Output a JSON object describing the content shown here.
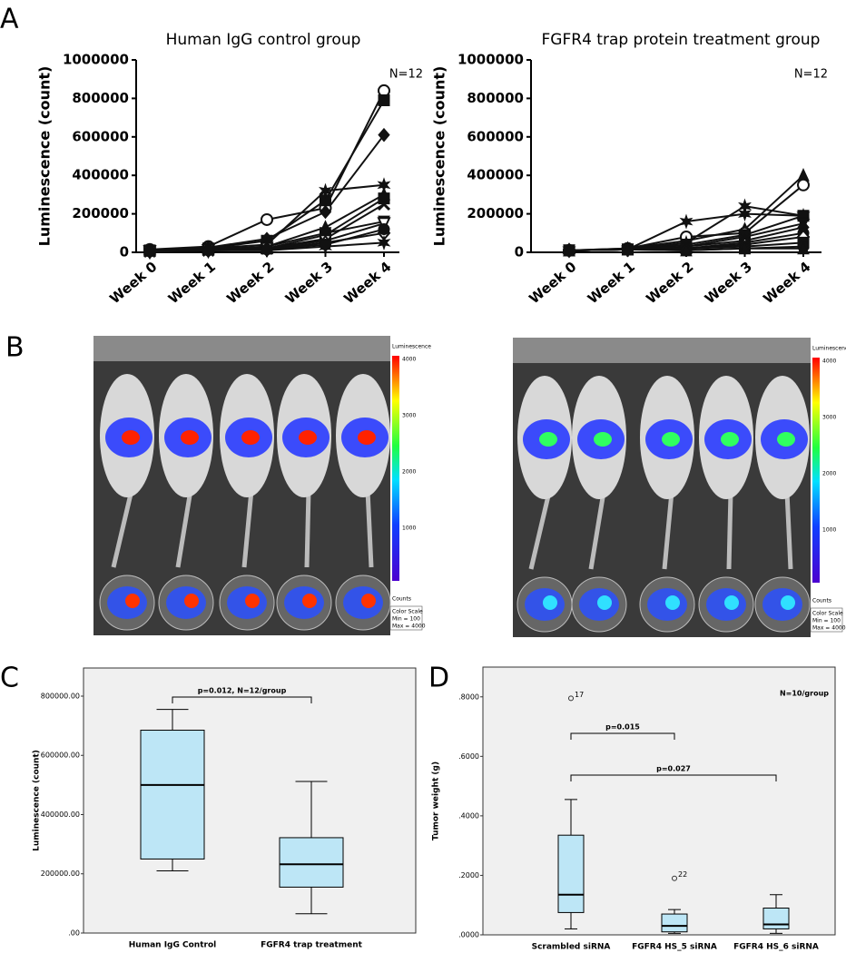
{
  "panels": {
    "a": "A",
    "b": "B",
    "c": "C",
    "d": "D"
  },
  "images": [
    {
      "colorbar": {
        "title": "Luminescence",
        "ticks": [
          "4000",
          "3000",
          "2000",
          "1000"
        ],
        "unit": "Counts"
      },
      "scale": [
        "Color Scale",
        "Min = 100",
        "Max = 4000"
      ]
    },
    {
      "colorbar": {
        "title": "Luminescence",
        "ticks": [
          "4000",
          "3000",
          "2000",
          "1000"
        ],
        "unit": "Counts"
      },
      "scale": [
        "Color Scale",
        "Min = 100",
        "Max = 4000"
      ]
    }
  ],
  "chart_data": [
    {
      "type": "line",
      "title": "Human IgG control group",
      "y_label": "Luminescence (count)",
      "annotations": [
        "N=12"
      ],
      "color": "#111111",
      "categories": [
        "Week 0",
        "Week 1",
        "Week 2",
        "Week 3",
        "Week 4"
      ],
      "ylim": [
        0,
        1000000
      ],
      "yticks": [
        0,
        200000,
        400000,
        600000,
        800000,
        1000000
      ],
      "series": [
        {
          "marker": "circle-open",
          "values": [
            15000,
            30000,
            170000,
            230000,
            840000
          ]
        },
        {
          "marker": "square",
          "values": [
            10000,
            20000,
            60000,
            270000,
            790000
          ]
        },
        {
          "marker": "diamond",
          "values": [
            12000,
            25000,
            70000,
            210000,
            610000
          ]
        },
        {
          "marker": "star",
          "values": [
            10000,
            20000,
            40000,
            320000,
            350000
          ]
        },
        {
          "marker": "triangle",
          "values": [
            8000,
            15000,
            30000,
            130000,
            300000
          ]
        },
        {
          "marker": "square",
          "values": [
            8000,
            15000,
            20000,
            90000,
            280000
          ]
        },
        {
          "marker": "cross",
          "values": [
            5000,
            10000,
            20000,
            70000,
            250000
          ]
        },
        {
          "marker": "triangle-down",
          "values": [
            5000,
            10000,
            30000,
            100000,
            160000
          ]
        },
        {
          "marker": "triangle-down-open",
          "values": [
            5000,
            10000,
            20000,
            60000,
            150000
          ]
        },
        {
          "marker": "diamond-open",
          "values": [
            5000,
            10000,
            15000,
            50000,
            100000
          ]
        },
        {
          "marker": "star",
          "values": [
            5000,
            10000,
            10000,
            30000,
            50000
          ]
        },
        {
          "marker": "circle",
          "values": [
            5000,
            10000,
            15000,
            40000,
            120000
          ]
        }
      ]
    },
    {
      "type": "line",
      "title": "FGFR4 trap protein treatment group",
      "y_label": "Luminescence (count)",
      "annotations": [
        "N=12"
      ],
      "color": "#111111",
      "categories": [
        "Week 0",
        "Week 1",
        "Week 2",
        "Week 3",
        "Week 4"
      ],
      "ylim": [
        0,
        1000000
      ],
      "yticks": [
        0,
        200000,
        400000,
        600000,
        800000,
        1000000
      ],
      "series": [
        {
          "marker": "triangle",
          "values": [
            10000,
            20000,
            60000,
            120000,
            400000
          ]
        },
        {
          "marker": "circle-open",
          "values": [
            10000,
            20000,
            80000,
            100000,
            350000
          ]
        },
        {
          "marker": "star",
          "values": [
            10000,
            15000,
            50000,
            240000,
            190000
          ]
        },
        {
          "marker": "star",
          "values": [
            10000,
            15000,
            160000,
            200000,
            190000
          ]
        },
        {
          "marker": "square",
          "values": [
            10000,
            15000,
            40000,
            90000,
            190000
          ]
        },
        {
          "marker": "triangle-down",
          "values": [
            10000,
            15000,
            30000,
            80000,
            150000
          ]
        },
        {
          "marker": "diamond",
          "values": [
            10000,
            15000,
            30000,
            60000,
            130000
          ]
        },
        {
          "marker": "circle",
          "values": [
            10000,
            15000,
            20000,
            50000,
            100000
          ]
        },
        {
          "marker": "diamond-open",
          "values": [
            10000,
            15000,
            20000,
            40000,
            80000
          ]
        },
        {
          "marker": "square",
          "values": [
            10000,
            15000,
            20000,
            30000,
            50000
          ]
        },
        {
          "marker": "circle",
          "values": [
            10000,
            15000,
            10000,
            20000,
            30000
          ]
        },
        {
          "marker": "triangle",
          "values": [
            10000,
            15000,
            10000,
            20000,
            20000
          ]
        }
      ]
    },
    {
      "type": "box",
      "y_label": "Luminescence (count)",
      "annotations": [
        "p=0.012, N=12/group"
      ],
      "color": "#bde6f6",
      "categories": [
        "Human IgG Control",
        "FGFR4 trap treatment"
      ],
      "ylim": [
        0,
        895000
      ],
      "yticks": [
        {
          "value": 0,
          "label": ".00"
        },
        {
          "value": 200000,
          "label": "200000.00"
        },
        {
          "value": 400000,
          "label": "400000.00"
        },
        {
          "value": 600000,
          "label": "600000.00"
        },
        {
          "value": 800000,
          "label": "800000.00"
        }
      ],
      "boxes": [
        {
          "min": 210000,
          "q1": 250000,
          "median": 500000,
          "q3": 685000,
          "max": 755000,
          "outliers": []
        },
        {
          "min": 65000,
          "q1": 155000,
          "median": 232000,
          "q3": 322000,
          "max": 512000,
          "outliers": []
        }
      ]
    },
    {
      "type": "box",
      "y_label": "Tumor weight (g)",
      "annotations": [
        "N=10/group",
        "p=0.015",
        "p=0.027"
      ],
      "color": "#bde6f6",
      "categories": [
        "Scrambled siRNA",
        "FGFR4 HS_5 siRNA",
        "FGFR4 HS_6 siRNA"
      ],
      "ylim": [
        0,
        0.9
      ],
      "yticks": [
        {
          "value": 0,
          "label": ".0000"
        },
        {
          "value": 0.2,
          "label": ".2000"
        },
        {
          "value": 0.4,
          "label": ".4000"
        },
        {
          "value": 0.6,
          "label": ".6000"
        },
        {
          "value": 0.8,
          "label": ".8000"
        }
      ],
      "boxes": [
        {
          "min": 0.02,
          "q1": 0.075,
          "median": 0.135,
          "q3": 0.335,
          "max": 0.455,
          "outliers": [
            {
              "value": 0.795,
              "id": "17"
            }
          ]
        },
        {
          "min": 0.005,
          "q1": 0.01,
          "median": 0.03,
          "q3": 0.07,
          "max": 0.085,
          "outliers": [
            {
              "value": 0.19,
              "id": "22"
            }
          ]
        },
        {
          "min": 0.005,
          "q1": 0.02,
          "median": 0.035,
          "q3": 0.09,
          "max": 0.135,
          "outliers": []
        }
      ]
    }
  ]
}
